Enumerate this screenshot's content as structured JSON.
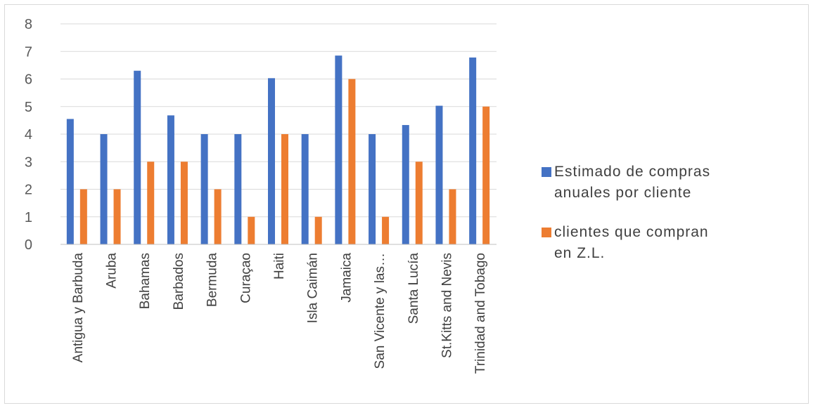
{
  "chart_data": {
    "type": "bar",
    "categories": [
      "Antigua y Barbuda",
      "Aruba",
      "Bahamas",
      "Barbados",
      "Bermuda",
      "Curaçao",
      "Haiti",
      "Isla Caimán",
      "Jamaica",
      "San Vicente y las…",
      "Santa Lucía",
      "St.Kitts and Nevis",
      "Trinidad and Tobago"
    ],
    "series": [
      {
        "name": "Estimado de compras anuales por cliente",
        "color": "#4472c4",
        "values": [
          4.55,
          4,
          6.3,
          4.68,
          4,
          4,
          6.03,
          4,
          6.85,
          4,
          4.33,
          5.03,
          6.78
        ]
      },
      {
        "name": "clientes que compran en Z.L.",
        "color": "#ed7d31",
        "values": [
          2,
          2,
          3,
          3,
          2,
          1,
          4,
          1,
          6,
          1,
          3,
          2,
          5
        ]
      }
    ],
    "ylim": [
      0,
      8
    ],
    "yticks": [
      "0",
      "1",
      "2",
      "3",
      "4",
      "5",
      "6",
      "7",
      "8"
    ],
    "grid": true,
    "legend_position": "right",
    "title": "",
    "xlabel": "",
    "ylabel": ""
  },
  "legend": [
    {
      "line1": "Estimado de compras",
      "line2": "anuales por cliente",
      "color": "#4472c4"
    },
    {
      "line1": "clientes que compran",
      "line2": "en Z.L.",
      "color": "#ed7d31"
    }
  ]
}
